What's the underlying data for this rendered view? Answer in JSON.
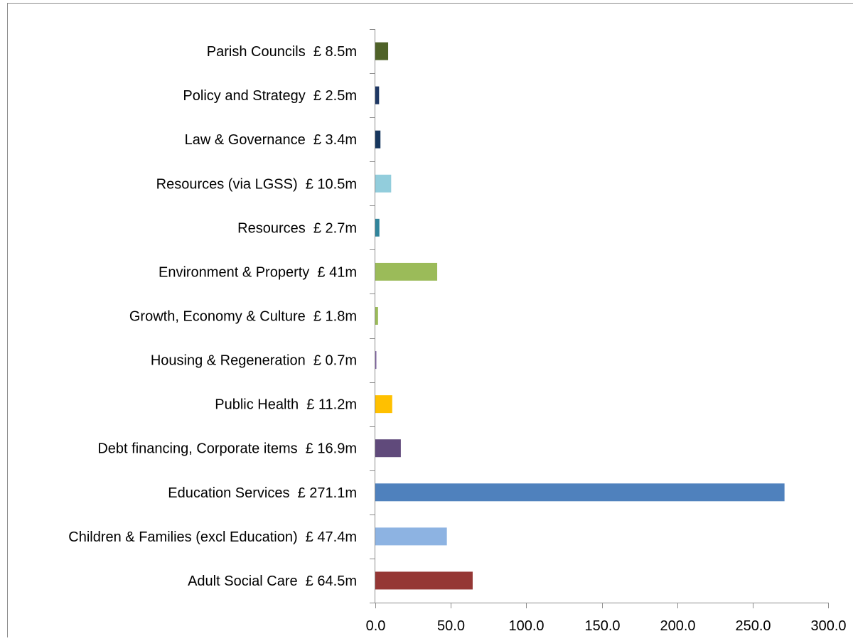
{
  "chart_data": {
    "type": "bar",
    "orientation": "horizontal",
    "categories": [
      "Parish Councils  £ 8.5m",
      "Policy and Strategy  £ 2.5m",
      "Law & Governance  £ 3.4m",
      "Resources (via LGSS)  £ 10.5m",
      "Resources  £ 2.7m",
      "Environment & Property  £ 41m",
      "Growth, Economy & Culture  £ 1.8m",
      "Housing & Regeneration  £ 0.7m",
      "Public Health  £ 11.2m",
      "Debt financing, Corporate items  £ 16.9m",
      "Education Services  £ 271.1m",
      "Children & Families (excl Education)  £ 47.4m",
      "Adult Social Care  £ 64.5m"
    ],
    "values": [
      8.5,
      2.5,
      3.4,
      10.5,
      2.7,
      41,
      1.8,
      0.7,
      11.2,
      16.9,
      271.1,
      47.4,
      64.5
    ],
    "colors": [
      "#4f6228",
      "#1f3864",
      "#17375e",
      "#92cddc",
      "#31859c",
      "#9bbb59",
      "#9bbb59",
      "#8064a2",
      "#ffc000",
      "#604a7b",
      "#4f81bd",
      "#8db3e2",
      "#953735"
    ],
    "xlim": [
      0,
      300
    ],
    "x_ticks": [
      "0.0",
      "50.0",
      "100.0",
      "150.0",
      "200.0",
      "250.0",
      "300.0"
    ],
    "title": "",
    "xlabel": "",
    "ylabel": "",
    "grid": false,
    "legend": "none"
  }
}
